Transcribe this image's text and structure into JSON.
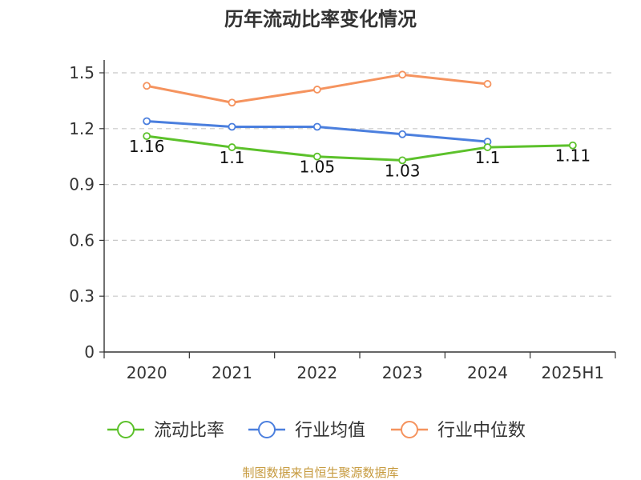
{
  "chart_data": {
    "type": "line",
    "title": "历年流动比率变化情况",
    "categories": [
      "2020",
      "2021",
      "2022",
      "2023",
      "2024",
      "2025H1"
    ],
    "ylim": [
      0,
      1.5
    ],
    "yticks": [
      "0",
      "0.3",
      "0.6",
      "0.9",
      "1.2",
      "1.5"
    ],
    "grid": true,
    "legend_position": "bottom",
    "series": [
      {
        "name": "流动比率",
        "color": "#5cc12b",
        "values": [
          1.16,
          1.1,
          1.05,
          1.03,
          1.1,
          1.11
        ],
        "labels": [
          "1.16",
          "1.1",
          "1.05",
          "1.03",
          "1.1",
          "1.11"
        ]
      },
      {
        "name": "行业均值",
        "color": "#4b7fde",
        "values": [
          1.24,
          1.21,
          1.21,
          1.17,
          1.13,
          null
        ]
      },
      {
        "name": "行业中位数",
        "color": "#f5935e",
        "values": [
          1.43,
          1.34,
          1.41,
          1.49,
          1.44,
          null
        ]
      }
    ],
    "source": "制图数据来自恒生聚源数据库"
  }
}
